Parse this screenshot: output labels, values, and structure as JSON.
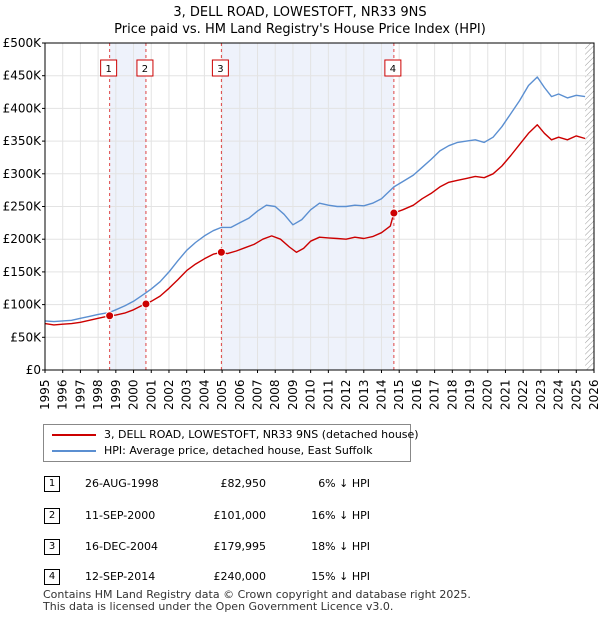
{
  "header": {
    "title": "3, DELL ROAD, LOWESTOFT, NR33 9NS",
    "subtitle": "Price paid vs. HM Land Registry's House Price Index (HPI)"
  },
  "colors": {
    "property": "#cc0000",
    "hpi": "#5b8fd1",
    "shade": "#eef2fb",
    "grid": "#e3e3e3"
  },
  "chart_data": {
    "type": "line",
    "title": "Price paid vs. HM Land Registry's House Price Index (HPI)",
    "xlim": [
      1995,
      2026
    ],
    "ylim": [
      0,
      500000
    ],
    "x_ticks": [
      1995,
      1996,
      1997,
      1998,
      1999,
      2000,
      2001,
      2002,
      2003,
      2004,
      2005,
      2006,
      2007,
      2008,
      2009,
      2010,
      2011,
      2012,
      2013,
      2014,
      2015,
      2016,
      2017,
      2018,
      2019,
      2020,
      2021,
      2022,
      2023,
      2024,
      2025,
      2026
    ],
    "x_tick_labels": [
      "1995",
      "1996",
      "1997",
      "1998",
      "1999",
      "2000",
      "2001",
      "2002",
      "2003",
      "2004",
      "2005",
      "2006",
      "2007",
      "2008",
      "2009",
      "2010",
      "2011",
      "2012",
      "2013",
      "2014",
      "2015",
      "2016",
      "2017",
      "2018",
      "2019",
      "2020",
      "2021",
      "2022",
      "2023",
      "2024",
      "2025",
      "2026"
    ],
    "y_ticks": [
      0,
      50000,
      100000,
      150000,
      200000,
      250000,
      300000,
      350000,
      400000,
      450000,
      500000
    ],
    "y_tick_labels": [
      "£0",
      "£50K",
      "£100K",
      "£150K",
      "£200K",
      "£250K",
      "£300K",
      "£350K",
      "£400K",
      "£450K",
      "£500K"
    ],
    "shaded_ranges": [
      [
        1998.65,
        2000.7
      ],
      [
        2004.96,
        2014.7
      ]
    ],
    "hatched_from": 2025.5,
    "series": [
      {
        "name": "3, DELL ROAD, LOWESTOFT, NR33 9NS (detached house)",
        "color": "#cc0000",
        "points": [
          [
            1995.0,
            71000
          ],
          [
            1995.5,
            69000
          ],
          [
            1996.0,
            70000
          ],
          [
            1996.5,
            71000
          ],
          [
            1997.0,
            73000
          ],
          [
            1997.5,
            76000
          ],
          [
            1998.0,
            79000
          ],
          [
            1998.65,
            82950
          ],
          [
            1999.0,
            84000
          ],
          [
            1999.5,
            87000
          ],
          [
            2000.0,
            92000
          ],
          [
            2000.5,
            99000
          ],
          [
            2000.7,
            101000
          ],
          [
            2001.0,
            105000
          ],
          [
            2001.5,
            113000
          ],
          [
            2002.0,
            125000
          ],
          [
            2002.5,
            138000
          ],
          [
            2003.0,
            152000
          ],
          [
            2003.5,
            162000
          ],
          [
            2004.0,
            170000
          ],
          [
            2004.5,
            177000
          ],
          [
            2004.96,
            179995
          ],
          [
            2005.3,
            178000
          ],
          [
            2005.8,
            182000
          ],
          [
            2006.3,
            187000
          ],
          [
            2006.8,
            192000
          ],
          [
            2007.3,
            200000
          ],
          [
            2007.8,
            205000
          ],
          [
            2008.3,
            200000
          ],
          [
            2008.8,
            188000
          ],
          [
            2009.2,
            180000
          ],
          [
            2009.6,
            186000
          ],
          [
            2010.0,
            197000
          ],
          [
            2010.5,
            203000
          ],
          [
            2011.0,
            202000
          ],
          [
            2011.5,
            201000
          ],
          [
            2012.0,
            200000
          ],
          [
            2012.5,
            203000
          ],
          [
            2013.0,
            201000
          ],
          [
            2013.5,
            204000
          ],
          [
            2014.0,
            210000
          ],
          [
            2014.5,
            220000
          ],
          [
            2014.7,
            240000
          ],
          [
            2015.2,
            245000
          ],
          [
            2015.8,
            252000
          ],
          [
            2016.3,
            262000
          ],
          [
            2016.8,
            270000
          ],
          [
            2017.3,
            280000
          ],
          [
            2017.8,
            287000
          ],
          [
            2018.3,
            290000
          ],
          [
            2018.8,
            293000
          ],
          [
            2019.3,
            296000
          ],
          [
            2019.8,
            294000
          ],
          [
            2020.3,
            300000
          ],
          [
            2020.8,
            312000
          ],
          [
            2021.3,
            328000
          ],
          [
            2021.8,
            345000
          ],
          [
            2022.3,
            362000
          ],
          [
            2022.8,
            375000
          ],
          [
            2023.2,
            362000
          ],
          [
            2023.6,
            352000
          ],
          [
            2024.0,
            356000
          ],
          [
            2024.5,
            352000
          ],
          [
            2025.0,
            358000
          ],
          [
            2025.5,
            354000
          ]
        ]
      },
      {
        "name": "HPI: Average price, detached house, East Suffolk",
        "color": "#5b8fd1",
        "points": [
          [
            1995.0,
            75000
          ],
          [
            1995.5,
            74000
          ],
          [
            1996.0,
            75000
          ],
          [
            1996.5,
            76000
          ],
          [
            1997.0,
            79000
          ],
          [
            1997.5,
            82000
          ],
          [
            1998.0,
            85000
          ],
          [
            1998.65,
            88000
          ],
          [
            1999.0,
            92000
          ],
          [
            1999.5,
            98000
          ],
          [
            2000.0,
            105000
          ],
          [
            2000.7,
            118000
          ],
          [
            2001.0,
            124000
          ],
          [
            2001.5,
            135000
          ],
          [
            2002.0,
            150000
          ],
          [
            2002.5,
            167000
          ],
          [
            2003.0,
            183000
          ],
          [
            2003.5,
            195000
          ],
          [
            2004.0,
            205000
          ],
          [
            2004.5,
            213000
          ],
          [
            2004.96,
            218000
          ],
          [
            2005.5,
            218000
          ],
          [
            2006.0,
            225000
          ],
          [
            2006.5,
            232000
          ],
          [
            2007.0,
            243000
          ],
          [
            2007.5,
            252000
          ],
          [
            2008.0,
            250000
          ],
          [
            2008.5,
            238000
          ],
          [
            2009.0,
            222000
          ],
          [
            2009.5,
            230000
          ],
          [
            2010.0,
            245000
          ],
          [
            2010.5,
            255000
          ],
          [
            2011.0,
            252000
          ],
          [
            2011.5,
            250000
          ],
          [
            2012.0,
            250000
          ],
          [
            2012.5,
            252000
          ],
          [
            2013.0,
            251000
          ],
          [
            2013.5,
            255000
          ],
          [
            2014.0,
            262000
          ],
          [
            2014.7,
            280000
          ],
          [
            2015.2,
            288000
          ],
          [
            2015.8,
            298000
          ],
          [
            2016.3,
            310000
          ],
          [
            2016.8,
            322000
          ],
          [
            2017.3,
            335000
          ],
          [
            2017.8,
            343000
          ],
          [
            2018.3,
            348000
          ],
          [
            2018.8,
            350000
          ],
          [
            2019.3,
            352000
          ],
          [
            2019.8,
            348000
          ],
          [
            2020.3,
            356000
          ],
          [
            2020.8,
            372000
          ],
          [
            2021.3,
            392000
          ],
          [
            2021.8,
            412000
          ],
          [
            2022.3,
            435000
          ],
          [
            2022.8,
            448000
          ],
          [
            2023.2,
            432000
          ],
          [
            2023.6,
            418000
          ],
          [
            2024.0,
            422000
          ],
          [
            2024.5,
            416000
          ],
          [
            2025.0,
            420000
          ],
          [
            2025.5,
            418000
          ]
        ]
      }
    ],
    "sales": [
      {
        "label": "1",
        "year": 1998.65,
        "price": 82950
      },
      {
        "label": "2",
        "year": 2000.7,
        "price": 101000
      },
      {
        "label": "3",
        "year": 2004.96,
        "price": 179995
      },
      {
        "label": "4",
        "year": 2014.7,
        "price": 240000
      }
    ]
  },
  "legend": {
    "property_label": "3, DELL ROAD, LOWESTOFT, NR33 9NS (detached house)",
    "hpi_label": "HPI: Average price, detached house, East Suffolk"
  },
  "transactions": [
    {
      "num": "1",
      "date": "26-AUG-1998",
      "price": "£82,950",
      "hpi": "6% ↓ HPI"
    },
    {
      "num": "2",
      "date": "11-SEP-2000",
      "price": "£101,000",
      "hpi": "16% ↓ HPI"
    },
    {
      "num": "3",
      "date": "16-DEC-2004",
      "price": "£179,995",
      "hpi": "18% ↓ HPI"
    },
    {
      "num": "4",
      "date": "12-SEP-2014",
      "price": "£240,000",
      "hpi": "15% ↓ HPI"
    }
  ],
  "footer": {
    "line1": "Contains HM Land Registry data © Crown copyright and database right 2025.",
    "line2": "This data is licensed under the Open Government Licence v3.0."
  }
}
